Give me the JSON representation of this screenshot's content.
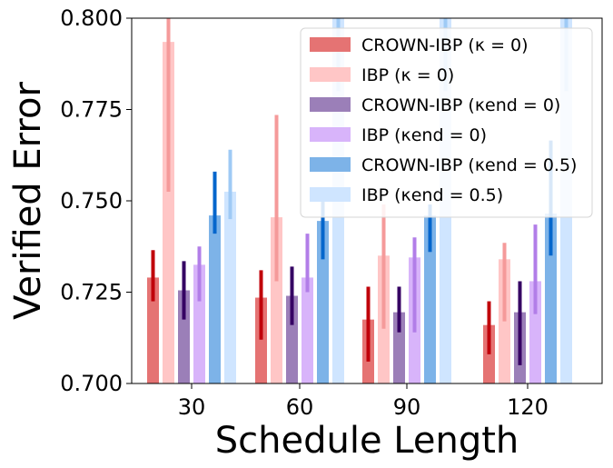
{
  "chart_data": {
    "type": "bar",
    "xlabel": "Schedule Length",
    "ylabel": "Verified Error",
    "ylim": [
      0.7,
      0.8
    ],
    "yticks": [
      0.7,
      0.725,
      0.75,
      0.775,
      0.8
    ],
    "ytick_labels": [
      "0.700",
      "0.725",
      "0.750",
      "0.775",
      "0.800"
    ],
    "categories": [
      "30",
      "60",
      "90",
      "120"
    ],
    "legend_position": "top-right",
    "series": [
      {
        "name": "CROWN-IBP",
        "kappa": "κ = 0",
        "color": "#e57373",
        "error_color": "#c0000a",
        "values": [
          0.729,
          0.7235,
          0.7175,
          0.716
        ],
        "errors": [
          [
            0.7225,
            0.7365
          ],
          [
            0.712,
            0.731
          ],
          [
            0.706,
            0.7265
          ],
          [
            0.708,
            0.7225
          ]
        ]
      },
      {
        "name": "IBP",
        "kappa": "κ = 0",
        "color": "#ffc6c6",
        "error_color": "#f59a9a",
        "values": [
          0.7935,
          0.7455,
          0.735,
          0.734
        ],
        "errors": [
          [
            0.7525,
            0.8
          ],
          [
            0.728,
            0.7735
          ],
          [
            0.715,
            0.749
          ],
          [
            0.717,
            0.7385
          ]
        ]
      },
      {
        "name": "CROWN-IBP",
        "kappa": "κend = 0",
        "color": "#9b7fb8",
        "error_color": "#350063",
        "values": [
          0.7255,
          0.724,
          0.7195,
          0.7195
        ],
        "errors": [
          [
            0.7175,
            0.7335
          ],
          [
            0.716,
            0.732
          ],
          [
            0.714,
            0.7265
          ],
          [
            0.705,
            0.728
          ]
        ]
      },
      {
        "name": "IBP",
        "kappa": "κend = 0",
        "color": "#d8b4fa",
        "error_color": "#b27ee8",
        "values": [
          0.7325,
          0.729,
          0.7345,
          0.728
        ],
        "errors": [
          [
            0.7225,
            0.7375
          ],
          [
            0.725,
            0.741
          ],
          [
            0.714,
            0.74
          ],
          [
            0.719,
            0.7435
          ]
        ]
      },
      {
        "name": "CROWN-IBP",
        "kappa": "κend = 0.5",
        "color": "#7db3e8",
        "error_color": "#0566cc",
        "values": [
          0.746,
          0.7445,
          0.746,
          0.7465
        ],
        "errors": [
          [
            0.741,
            0.758
          ],
          [
            0.734,
            0.7515
          ],
          [
            0.736,
            0.749
          ],
          [
            0.735,
            0.7665
          ]
        ]
      },
      {
        "name": "IBP",
        "kappa": "κend = 0.5",
        "color": "#cfe5ff",
        "error_color": "#9fcaf5",
        "values": [
          0.7525,
          0.8,
          0.8,
          0.8
        ],
        "errors": [
          [
            0.745,
            0.764
          ],
          [
            0.78,
            0.8
          ],
          [
            0.78,
            0.8
          ],
          [
            0.78,
            0.8
          ]
        ]
      }
    ]
  }
}
